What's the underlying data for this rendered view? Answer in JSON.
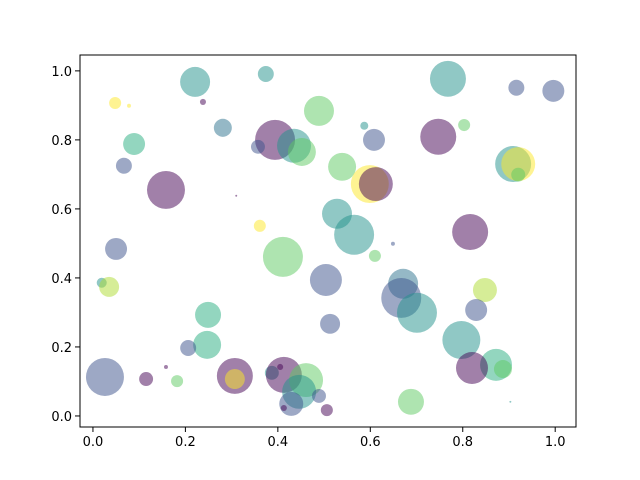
{
  "chart_data": {
    "type": "scatter",
    "alpha": 0.5,
    "x": [
      0.221,
      0.374,
      0.048,
      0.078,
      0.238,
      0.281,
      0.089,
      0.067,
      0.158,
      0.394,
      0.357,
      0.435,
      0.452,
      0.489,
      0.768,
      0.916,
      0.996,
      0.803,
      0.747,
      0.587,
      0.608,
      0.539,
      0.599,
      0.612,
      0.909,
      0.92,
      0.92,
      0.31,
      0.528,
      0.565,
      0.361,
      0.411,
      0.05,
      0.816,
      0.649,
      0.61,
      0.019,
      0.035,
      0.504,
      0.671,
      0.667,
      0.701,
      0.848,
      0.829,
      0.249,
      0.513,
      0.797,
      0.247,
      0.206,
      0.872,
      0.82,
      0.887,
      0.026,
      0.115,
      0.158,
      0.182,
      0.307,
      0.307,
      0.387,
      0.413,
      0.405,
      0.461,
      0.446,
      0.429,
      0.413,
      0.489,
      0.506,
      0.688,
      0.903
    ],
    "y": [
      0.968,
      0.991,
      0.907,
      0.899,
      0.91,
      0.835,
      0.788,
      0.725,
      0.655,
      0.8,
      0.78,
      0.783,
      0.765,
      0.884,
      0.977,
      0.951,
      0.942,
      0.843,
      0.809,
      0.841,
      0.8,
      0.722,
      0.672,
      0.672,
      0.73,
      0.73,
      0.699,
      0.638,
      0.586,
      0.525,
      0.551,
      0.461,
      0.484,
      0.533,
      0.499,
      0.464,
      0.386,
      0.374,
      0.394,
      0.383,
      0.342,
      0.299,
      0.365,
      0.307,
      0.293,
      0.267,
      0.22,
      0.206,
      0.197,
      0.148,
      0.139,
      0.136,
      0.113,
      0.107,
      0.142,
      0.101,
      0.116,
      0.107,
      0.125,
      0.119,
      0.142,
      0.104,
      0.07,
      0.035,
      0.023,
      0.058,
      0.017,
      0.041,
      0.041
    ],
    "sizes": [
      466,
      132,
      75,
      8,
      19,
      168,
      250,
      132,
      747,
      828,
      101,
      598,
      406,
      466,
      671,
      132,
      250,
      75,
      671,
      33,
      250,
      406,
      747,
      598,
      671,
      598,
      101,
      2,
      466,
      828,
      75,
      828,
      250,
      671,
      8,
      75,
      52,
      207,
      530,
      466,
      828,
      828,
      298,
      250,
      350,
      207,
      747,
      406,
      132,
      530,
      530,
      168,
      747,
      101,
      8,
      75,
      671,
      207,
      101,
      671,
      19,
      598,
      598,
      298,
      19,
      101,
      75,
      350,
      2
    ],
    "colors": [
      "#21918c",
      "#21918c",
      "#fde725",
      "#fde725",
      "#440154",
      "#2c728e",
      "#28ae80",
      "#3b528b",
      "#440154",
      "#440154",
      "#3b528b",
      "#21918c",
      "#5ec962",
      "#5ec962",
      "#21918c",
      "#3b528b",
      "#3b528b",
      "#5ec962",
      "#440154",
      "#21918c",
      "#3b528b",
      "#5ec962",
      "#fde725",
      "#440154",
      "#21918c",
      "#fde725",
      "#5ec962",
      "#440154",
      "#21918c",
      "#21918c",
      "#fde725",
      "#5ec962",
      "#3b528b",
      "#440154",
      "#3b528b",
      "#5ec962",
      "#21918c",
      "#addc30",
      "#3b528b",
      "#2c728e",
      "#3b528b",
      "#21918c",
      "#addc30",
      "#3b528b",
      "#28ae80",
      "#3b528b",
      "#21918c",
      "#28ae80",
      "#3b528b",
      "#28ae80",
      "#440154",
      "#5ec962",
      "#3b528b",
      "#440154",
      "#440154",
      "#5ec962",
      "#440154",
      "#fde725",
      "#21918c",
      "#440154",
      "#440154",
      "#5ec962",
      "#21918c",
      "#3b528b",
      "#440154",
      "#3b528b",
      "#440154",
      "#5ec962",
      "#21918c"
    ],
    "xlim": [
      -0.028,
      1.045
    ],
    "ylim": [
      -0.032,
      1.046
    ],
    "xticks": [
      {
        "value": 0,
        "label": "0.0"
      },
      0.2,
      0.4,
      0.6,
      0.8,
      {
        "value": 1,
        "label": "1.0"
      }
    ],
    "yticks": [
      {
        "value": 0,
        "label": "0.0"
      },
      0.2,
      0.4,
      0.6,
      0.8,
      {
        "value": 1,
        "label": "1.0"
      }
    ]
  }
}
